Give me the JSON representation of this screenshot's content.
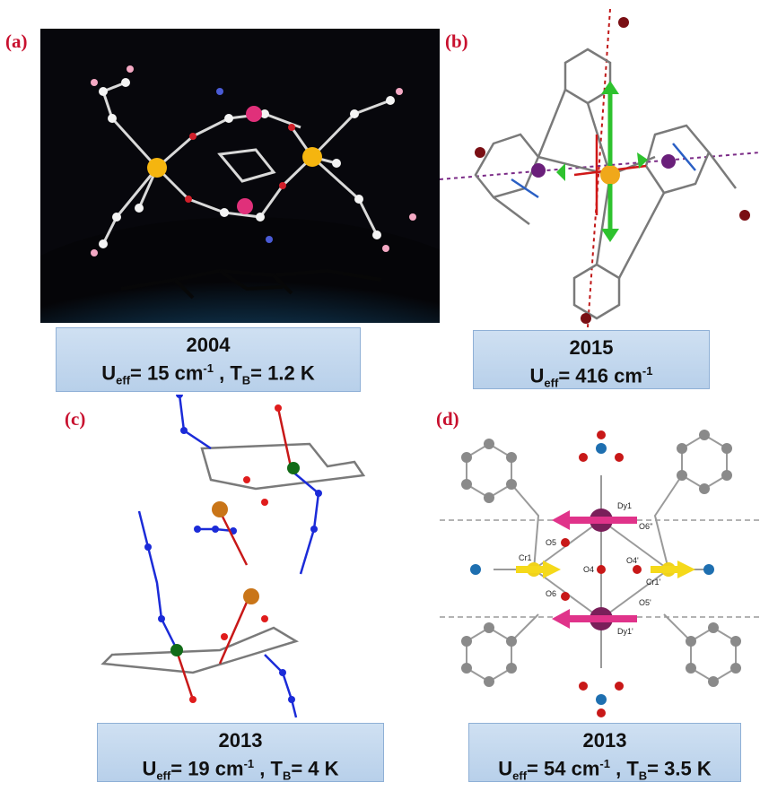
{
  "panels": [
    {
      "label": "(a)",
      "year": "2004",
      "ueff_value": "15 cm",
      "tb_value": "1.2 K"
    },
    {
      "label": "(b)",
      "year": "2015",
      "ueff_value": "416 cm",
      "tb_value": ""
    },
    {
      "label": "(c)",
      "year": "2013",
      "ueff_value": "19 cm",
      "tb_value": "4 K"
    },
    {
      "label": "(d)",
      "year": "2013",
      "ueff_value": "54 cm",
      "tb_value": "3.5 K"
    }
  ],
  "symbols": {
    "u": "U",
    "u_sub": "eff",
    "t": "T",
    "t_sub": "B",
    "exp": "-1",
    "sep": " , ",
    "eq": "= "
  },
  "atom_labels_d": [
    "Dy1",
    "O6''",
    "O5",
    "Cr1",
    "O4",
    "O4'",
    "Cr1'",
    "O6",
    "O5'",
    "Dy1'"
  ],
  "colors": {
    "label_red": "#c8102e",
    "caption_bg": "#c3d7ee",
    "dark_bg": "#0b0b12",
    "pink_arrow": "#e0338a",
    "yellow_arrow": "#f5d91a",
    "green_arrow": "#2ec22e"
  }
}
